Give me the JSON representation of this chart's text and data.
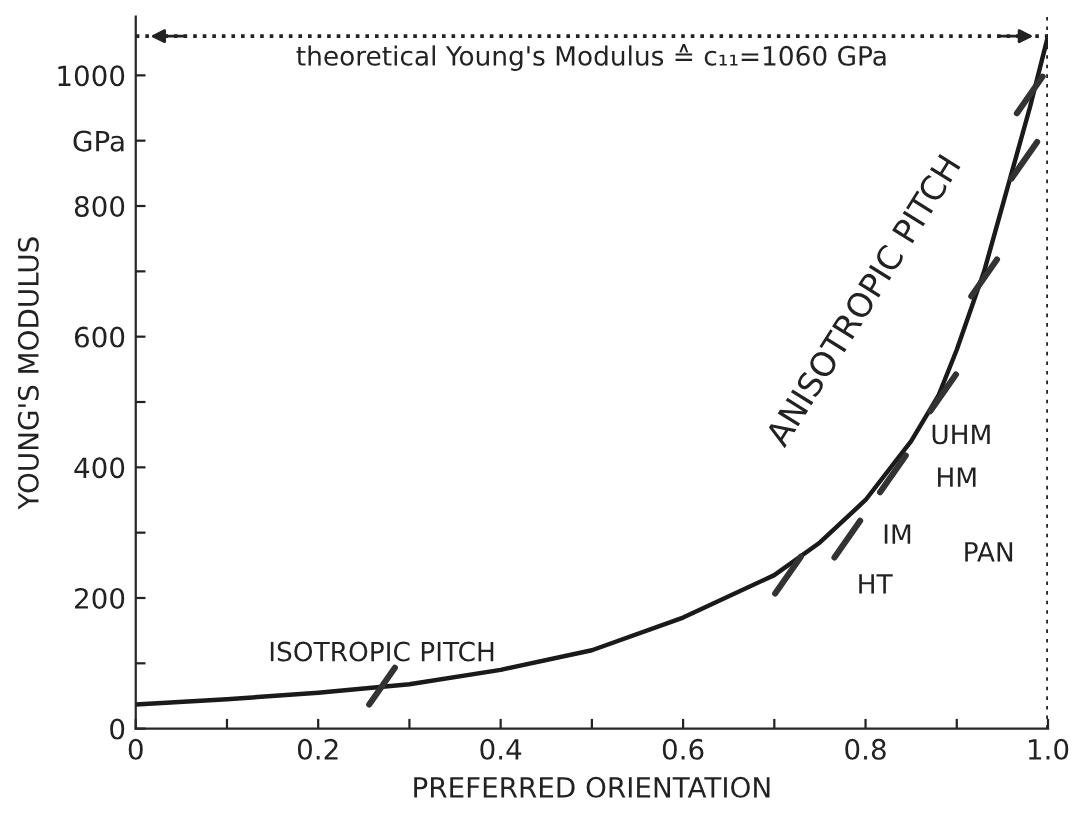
{
  "chart_data": {
    "type": "line",
    "xlabel": "PREFERRED ORIENTATION",
    "ylabel": "YOUNG'S MODULUS",
    "xlim": [
      0,
      1.0
    ],
    "ylim": [
      0,
      1090
    ],
    "xticks": [
      0,
      {
        "value": 0.1,
        "label": null
      },
      0.2,
      {
        "value": 0.3,
        "label": null
      },
      0.4,
      {
        "value": 0.5,
        "label": null
      },
      0.6,
      {
        "value": 0.7,
        "label": null
      },
      0.8,
      {
        "value": 0.9,
        "label": null
      },
      {
        "value": 1.0,
        "label": "1.0"
      }
    ],
    "yticks": [
      0,
      {
        "value": 100,
        "label": null
      },
      200,
      {
        "value": 300,
        "label": null
      },
      400,
      {
        "value": 500,
        "label": null
      },
      600,
      {
        "value": 700,
        "label": null
      },
      800,
      {
        "value": 900,
        "label": "GPa"
      },
      1000
    ],
    "series": [
      {
        "color": "#1a1a1a",
        "x": [
          0,
          0.1,
          0.2,
          0.3,
          0.4,
          0.5,
          0.6,
          0.7,
          0.75,
          0.8,
          0.85,
          0.88,
          0.9,
          0.93,
          0.96,
          0.98,
          1.0
        ],
        "values": [
          37,
          45,
          55,
          68,
          90,
          120,
          170,
          235,
          285,
          350,
          440,
          510,
          580,
          700,
          850,
          950,
          1060
        ]
      },
      {
        "type": "scatter",
        "color": "#333333",
        "x": [
          0.27,
          0.715,
          0.78,
          0.83,
          0.885,
          0.93,
          0.974,
          0.98
        ],
        "values": [
          65,
          235,
          290,
          390,
          514,
          690,
          870,
          970
        ]
      }
    ],
    "ref_lines": [
      {
        "axis": "y",
        "value": 1060,
        "label": "theoretical Young's Modulus ≙ c₁₁=1060 GPa",
        "line_style": "dotted"
      },
      {
        "axis": "x",
        "value": 1.0,
        "line_style": "dotted"
      }
    ],
    "annotations": [
      "ISOTROPIC PITCH",
      "ANISOTROPIC PITCH",
      "HT",
      "IM",
      "HM",
      "UHM",
      "PAN"
    ],
    "grid": false,
    "legend": false
  }
}
